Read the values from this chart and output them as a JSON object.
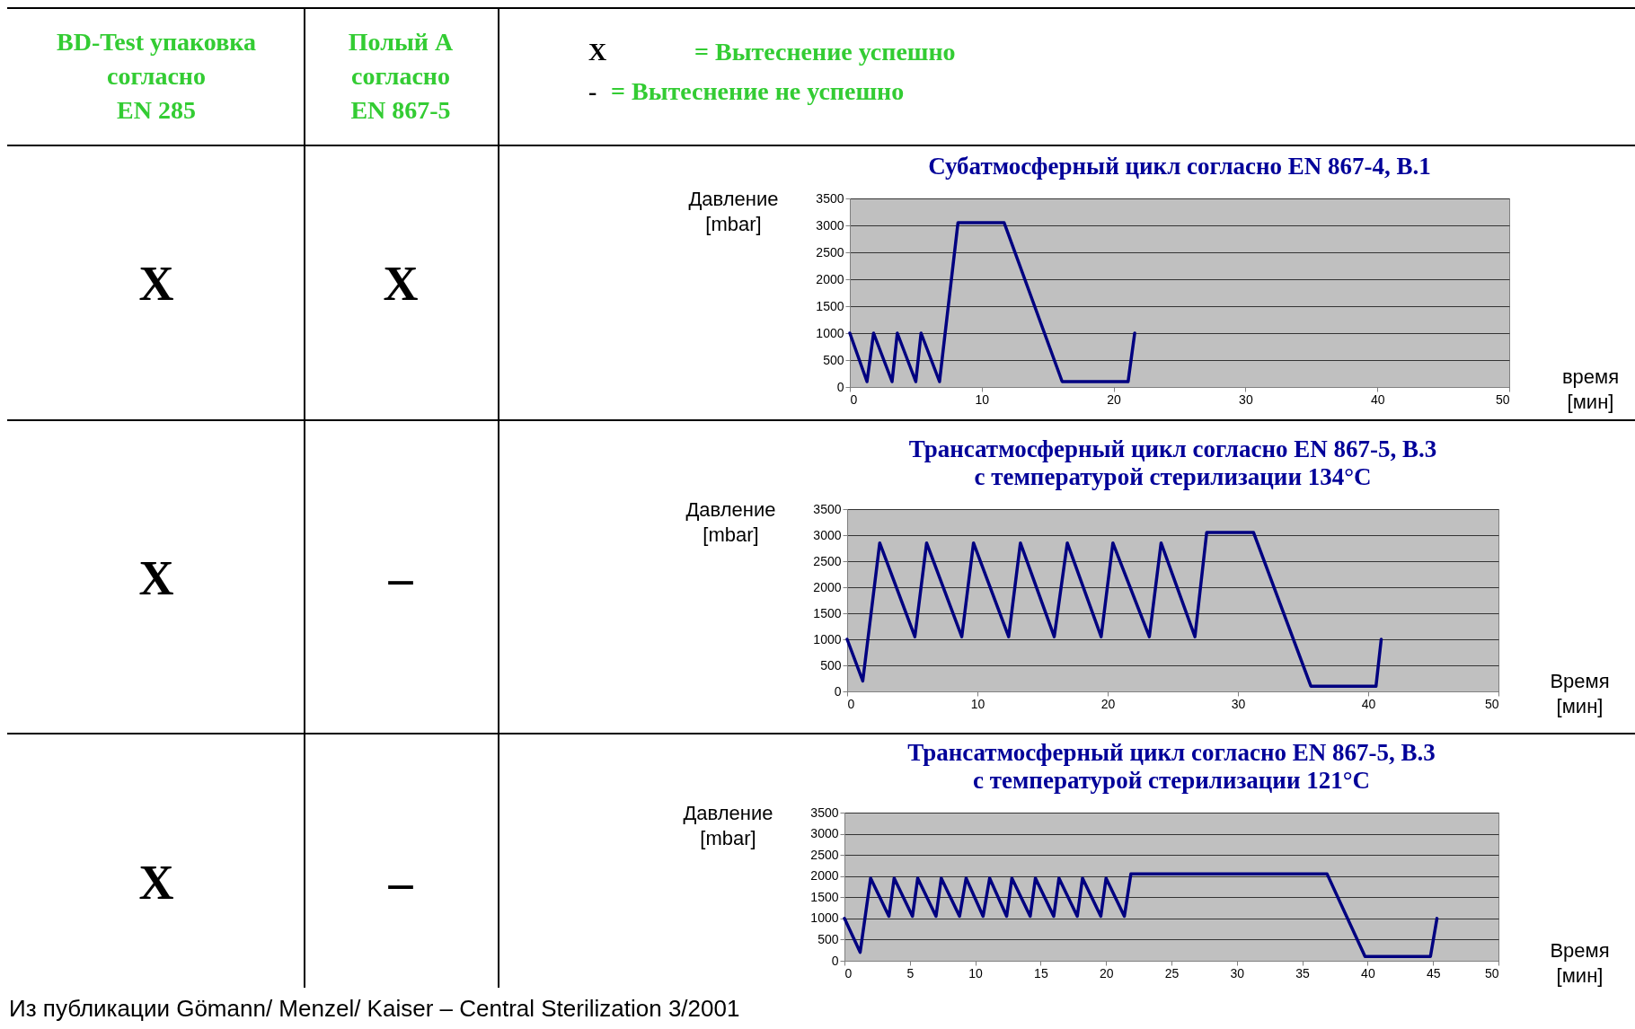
{
  "chart_data": [
    {
      "type": "other",
      "annotations": [
        "BD-Test упаковка\nсогласно\nEN 285",
        "Полый A\nсогласно\nEN 867-5",
        "X = Вытеснение успешно",
        "- = Вытеснение не успешно",
        "X",
        "X",
        "X",
        "–",
        "X",
        "–",
        "Из публикации Gömann/ Menzel/ Kaiser – Central Sterilization 3/2001"
      ]
    },
    {
      "type": "line",
      "title": "Субатмосферный цикл согласно EN 867-4, B.1",
      "ylabel": "Давление\n[mbar]",
      "xlabel": "время\n[мин]",
      "x": [
        0,
        1.3,
        1.8,
        3.2,
        3.6,
        5.0,
        5.4,
        6.8,
        8.2,
        11.7,
        16.1,
        21.1,
        21.6
      ],
      "series": [
        {
          "color": "#000080",
          "values": [
            1000,
            100,
            1000,
            100,
            1000,
            100,
            1000,
            100,
            3050,
            3050,
            100,
            100,
            1000
          ]
        }
      ],
      "xlim": [
        0,
        50
      ],
      "xticks": [
        0,
        10,
        20,
        30,
        40,
        50
      ],
      "ylim": [
        0,
        3500
      ],
      "yticks": [
        0,
        500,
        1000,
        1500,
        2000,
        2500,
        3000,
        3500
      ],
      "grid": "y"
    },
    {
      "type": "line",
      "title": "Трансатмосферный цикл согласно EN 867-5, B.3",
      "subtitle": "с температурой стерилизации 134°C",
      "ylabel": "Давление\n[mbar]",
      "xlabel": "Время\n[мин]",
      "x": [
        0,
        1.2,
        2.5,
        5.2,
        6.1,
        8.8,
        9.7,
        12.4,
        13.3,
        15.9,
        16.9,
        19.5,
        20.4,
        23.2,
        24.1,
        26.7,
        27.6,
        31.2,
        35.6,
        40.6,
        41.0
      ],
      "series": [
        {
          "color": "#000080",
          "values": [
            1000,
            200,
            2850,
            1050,
            2850,
            1050,
            2850,
            1050,
            2850,
            1050,
            2850,
            1050,
            2850,
            1050,
            2850,
            1050,
            3050,
            3050,
            100,
            100,
            1000
          ]
        }
      ],
      "xlim": [
        0,
        50
      ],
      "xticks": [
        0,
        10,
        20,
        30,
        40,
        50
      ],
      "ylim": [
        0,
        3500
      ],
      "yticks": [
        0,
        500,
        1000,
        1500,
        2000,
        2500,
        3000,
        3500
      ],
      "grid": "y"
    },
    {
      "type": "line",
      "title": "Трансатмосферный цикл согласно EN 867-5, B.3",
      "subtitle": "с температурой стерилизации 121°C",
      "ylabel": "Давление\n[mbar]",
      "xlabel": "Время\n[мин]",
      "x": [
        0,
        1.2,
        2.0,
        3.4,
        3.8,
        5.2,
        5.6,
        7.0,
        7.4,
        8.8,
        9.3,
        10.6,
        11.1,
        12.4,
        12.8,
        14.2,
        14.6,
        16.0,
        16.4,
        17.8,
        18.2,
        19.6,
        20.0,
        21.4,
        21.9,
        36.9,
        39.8,
        44.8,
        45.3
      ],
      "series": [
        {
          "color": "#000080",
          "values": [
            1000,
            200,
            1950,
            1050,
            1950,
            1050,
            1950,
            1050,
            1950,
            1050,
            1950,
            1050,
            1950,
            1050,
            1950,
            1050,
            1950,
            1050,
            1950,
            1050,
            1950,
            1050,
            1950,
            1050,
            2050,
            2050,
            100,
            100,
            1000
          ]
        }
      ],
      "xlim": [
        0,
        50
      ],
      "xticks": [
        0,
        5,
        10,
        15,
        20,
        25,
        30,
        35,
        40,
        45,
        50
      ],
      "ylim": [
        0,
        3500
      ],
      "yticks": [
        0,
        500,
        1000,
        1500,
        2000,
        2500,
        3000,
        3500
      ],
      "grid": "y"
    }
  ]
}
